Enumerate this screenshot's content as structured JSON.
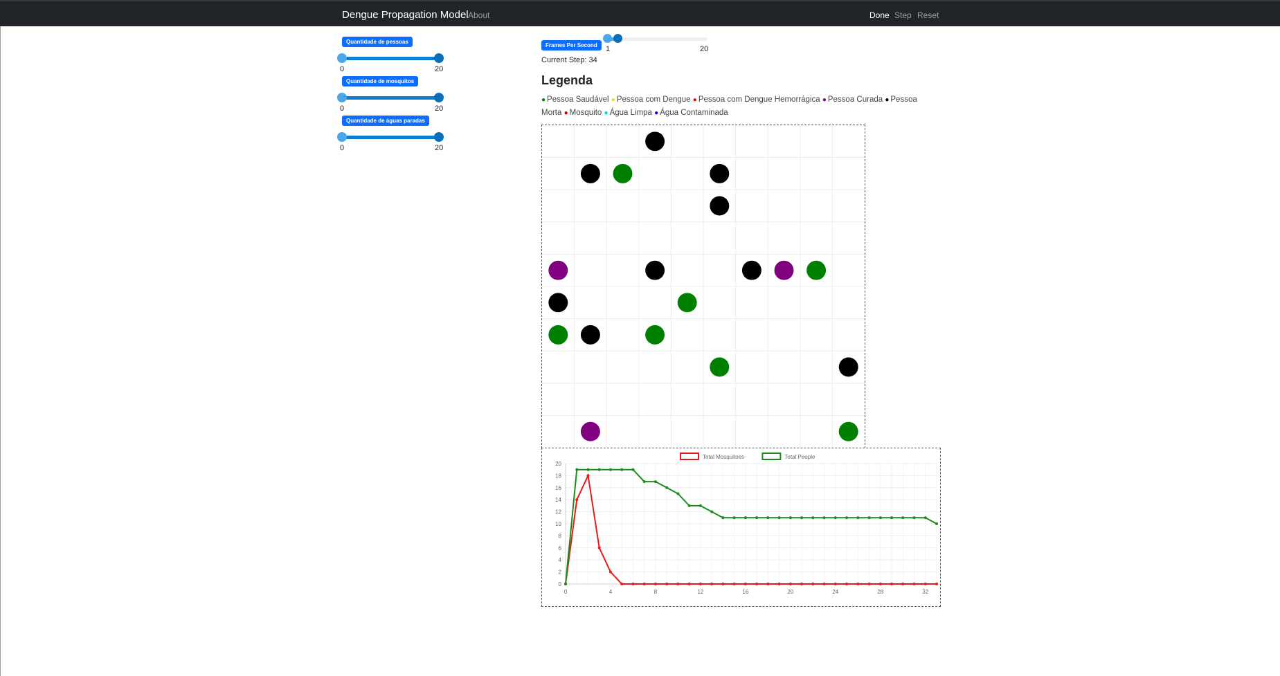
{
  "navbar": {
    "brand": "Dengue Propagation Model",
    "about": "About",
    "done": "Done",
    "step": "Step",
    "reset": "Reset"
  },
  "params": {
    "people": {
      "label": "Quantidade de pessoas",
      "min": "0",
      "max": "20",
      "low": 0,
      "high": 20
    },
    "mosquitoes": {
      "label": "Quantidade de mosquitos",
      "min": "0",
      "max": "20",
      "low": 0,
      "high": 20
    },
    "water": {
      "label": "Quantidade de águas paradas",
      "min": "0",
      "max": "20",
      "low": 0,
      "high": 20
    }
  },
  "fps": {
    "label": "Frames Per Second",
    "min": "1",
    "max": "20",
    "value": 3
  },
  "current_step": "Current Step: 34",
  "legend": {
    "title": "Legenda",
    "items": [
      {
        "label": "Pessoa Saudável",
        "color": "#008000"
      },
      {
        "label": "Pessoa com Dengue",
        "color": "#ffd800"
      },
      {
        "label": "Pessoa com Dengue Hemorrágica",
        "color": "#ff0000"
      },
      {
        "label": "Pessoa Curada",
        "color": "#800080"
      },
      {
        "label": "Pessoa Morta",
        "color": "#000000"
      },
      {
        "label": "Mosquito",
        "color": "#c00000"
      },
      {
        "label": "Água Limpa",
        "color": "#00d0d0"
      },
      {
        "label": "Água Contaminada",
        "color": "#0000ff"
      }
    ]
  },
  "grid": {
    "cols": 10,
    "rows": 10,
    "agents": [
      {
        "col": 3,
        "row": 0,
        "color": "#000000"
      },
      {
        "col": 1,
        "row": 1,
        "color": "#000000"
      },
      {
        "col": 2,
        "row": 1,
        "color": "#008000"
      },
      {
        "col": 5,
        "row": 1,
        "color": "#000000"
      },
      {
        "col": 5,
        "row": 2,
        "color": "#000000"
      },
      {
        "col": 0,
        "row": 4,
        "color": "#800080"
      },
      {
        "col": 3,
        "row": 4,
        "color": "#000000"
      },
      {
        "col": 6,
        "row": 4,
        "color": "#000000"
      },
      {
        "col": 7,
        "row": 4,
        "color": "#800080"
      },
      {
        "col": 8,
        "row": 4,
        "color": "#008000"
      },
      {
        "col": 0,
        "row": 5,
        "color": "#000000"
      },
      {
        "col": 4,
        "row": 5,
        "color": "#008000"
      },
      {
        "col": 0,
        "row": 6,
        "color": "#008000"
      },
      {
        "col": 1,
        "row": 6,
        "color": "#000000"
      },
      {
        "col": 3,
        "row": 6,
        "color": "#008000"
      },
      {
        "col": 5,
        "row": 7,
        "color": "#008000"
      },
      {
        "col": 9,
        "row": 7,
        "color": "#000000"
      },
      {
        "col": 1,
        "row": 9,
        "color": "#800080"
      },
      {
        "col": 9,
        "row": 9,
        "color": "#008000"
      }
    ]
  },
  "chart_data": {
    "type": "line",
    "x": [
      0,
      1,
      2,
      3,
      4,
      5,
      6,
      7,
      8,
      9,
      10,
      11,
      12,
      13,
      14,
      15,
      16,
      17,
      18,
      19,
      20,
      21,
      22,
      23,
      24,
      25,
      26,
      27,
      28,
      29,
      30,
      31,
      32,
      33
    ],
    "series": [
      {
        "name": "Total Mosquitoes",
        "color": "#e31a1c",
        "values": [
          0,
          14,
          18,
          6,
          2,
          0,
          0,
          0,
          0,
          0,
          0,
          0,
          0,
          0,
          0,
          0,
          0,
          0,
          0,
          0,
          0,
          0,
          0,
          0,
          0,
          0,
          0,
          0,
          0,
          0,
          0,
          0,
          0,
          0
        ]
      },
      {
        "name": "Total People",
        "color": "#1a8c1a",
        "values": [
          0,
          19,
          19,
          19,
          19,
          19,
          19,
          17,
          17,
          16,
          15,
          13,
          13,
          12,
          11,
          11,
          11,
          11,
          11,
          11,
          11,
          11,
          11,
          11,
          11,
          11,
          11,
          11,
          11,
          11,
          11,
          11,
          11,
          10
        ]
      }
    ],
    "xticks": [
      0,
      4,
      8,
      12,
      16,
      20,
      24,
      28,
      32
    ],
    "yticks": [
      0,
      2,
      4,
      6,
      8,
      10,
      12,
      14,
      16,
      18,
      20
    ],
    "ylim": [
      0,
      20
    ],
    "xlim": [
      0,
      33
    ],
    "legend_position": "top",
    "grid": true
  }
}
